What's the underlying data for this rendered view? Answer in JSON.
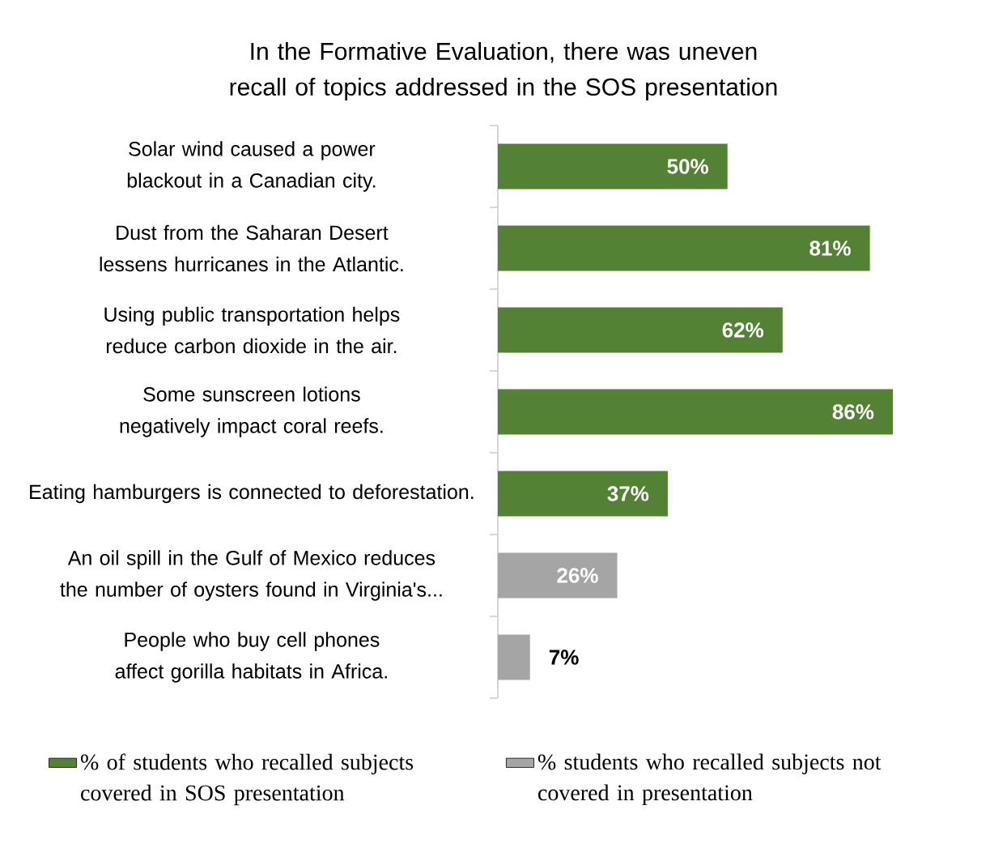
{
  "chart_data": {
    "type": "bar",
    "orientation": "horizontal",
    "title": "In the Formative Evaluation, there was uneven recall of topics addressed in the SOS presentation",
    "categories": [
      "Solar wind caused a power blackout in a Canadian city.",
      "Dust from the Saharan Desert lessens hurricanes in the Atlantic.",
      "Using public transportation helps reduce carbon dioxide in the air.",
      "Some sunscreen lotions negatively impact coral reefs.",
      "Eating hamburgers is connected to deforestation.",
      "An oil spill in the Gulf of Mexico reduces the number of oysters found in Virginia's...",
      "People who buy cell phones affect gorilla habitats in Africa."
    ],
    "series": [
      {
        "name": "% of students who recalled subjects covered in SOS presentation",
        "color": "#548235",
        "values": [
          50,
          81,
          62,
          86,
          37,
          null,
          null
        ],
        "value_labels": [
          "50%",
          "81%",
          "62%",
          "86%",
          "37%",
          null,
          null
        ]
      },
      {
        "name": "% students who recalled subjects not covered in presentation",
        "color": "#a5a5a5",
        "values": [
          null,
          null,
          null,
          null,
          null,
          26,
          7
        ],
        "value_labels": [
          null,
          null,
          null,
          null,
          null,
          "26%",
          "7%"
        ]
      }
    ],
    "legend": "bottom",
    "tick_labels": "y"
  }
}
